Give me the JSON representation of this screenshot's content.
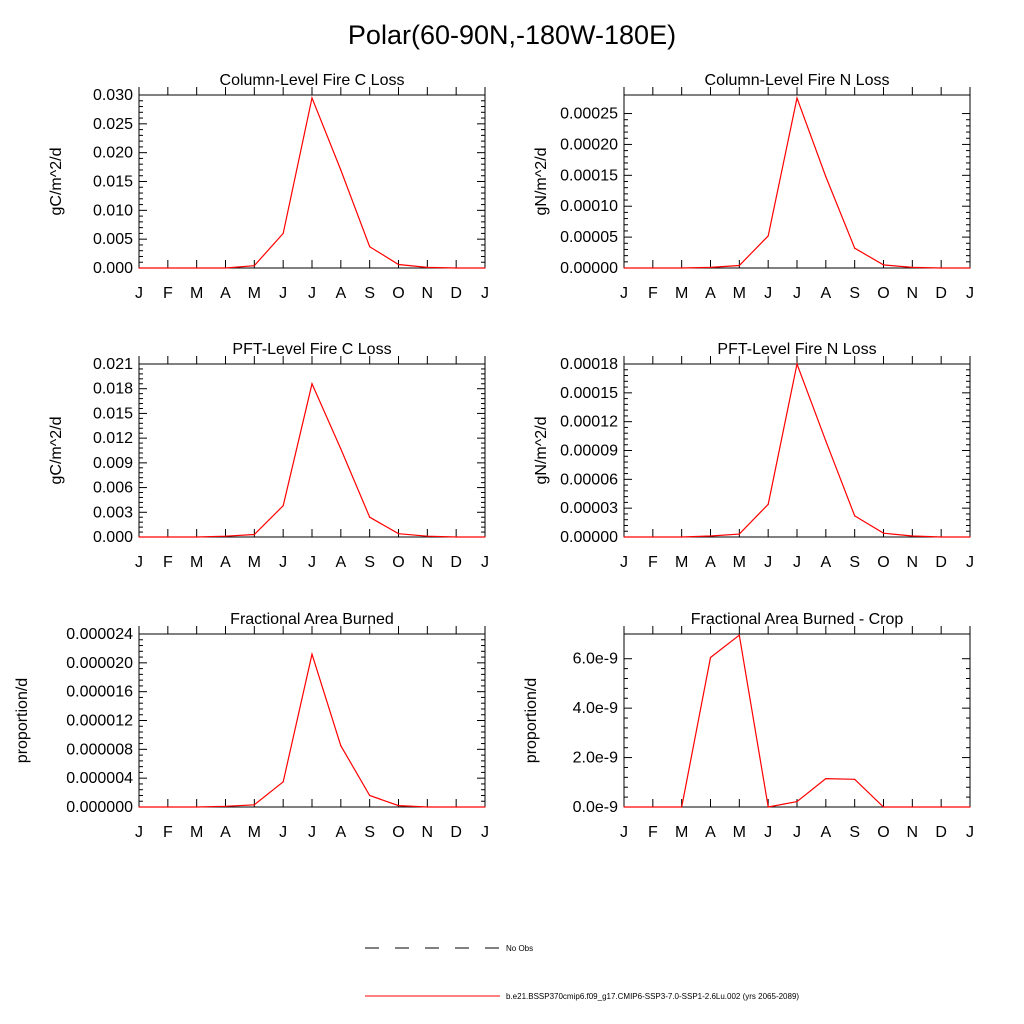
{
  "page_title": "Polar(60-90N,-180W-180E)",
  "legend": {
    "items": [
      {
        "label": "No Obs",
        "color": "#000000",
        "dashed": true
      },
      {
        "label": "b.e21.BSSP370cmip6.f09_g17.CMIP6-SSP3-7.0-SSP1-2.6Lu.002 (yrs 2065-2089)",
        "color": "#ff0000",
        "dashed": false
      }
    ]
  },
  "chart_data": [
    {
      "type": "line",
      "title": "Column-Level Fire C Loss",
      "xlabel": "",
      "ylabel": "gC/m^2/d",
      "categories": [
        "J",
        "F",
        "M",
        "A",
        "M",
        "J",
        "J",
        "A",
        "S",
        "O",
        "N",
        "D",
        "J"
      ],
      "ylim": [
        0,
        0.03
      ],
      "yticks": [
        "0.000",
        "0.005",
        "0.010",
        "0.015",
        "0.020",
        "0.025",
        "0.030"
      ],
      "series": [
        {
          "color": "#ff0000",
          "values": [
            0,
            0,
            0,
            0,
            0.0004,
            0.006,
            0.0295,
            0.017,
            0.0037,
            0.0006,
            0.0001,
            0.0,
            0.0
          ]
        }
      ]
    },
    {
      "type": "line",
      "title": "Column-Level Fire N Loss",
      "xlabel": "",
      "ylabel": "gN/m^2/d",
      "categories": [
        "J",
        "F",
        "M",
        "A",
        "M",
        "J",
        "J",
        "A",
        "S",
        "O",
        "N",
        "D",
        "J"
      ],
      "ylim": [
        0,
        0.00028
      ],
      "yticks": [
        "0.00000",
        "0.00005",
        "0.00010",
        "0.00015",
        "0.00020",
        "0.00025"
      ],
      "series": [
        {
          "color": "#ff0000",
          "values": [
            0,
            0,
            0,
            1e-06,
            4e-06,
            5.2e-05,
            0.000275,
            0.000148,
            3.2e-05,
            5e-06,
            1e-06,
            0.0,
            0.0
          ]
        }
      ]
    },
    {
      "type": "line",
      "title": "PFT-Level Fire C Loss",
      "xlabel": "",
      "ylabel": "gC/m^2/d",
      "categories": [
        "J",
        "F",
        "M",
        "A",
        "M",
        "J",
        "J",
        "A",
        "S",
        "O",
        "N",
        "D",
        "J"
      ],
      "ylim": [
        0,
        0.021
      ],
      "yticks": [
        "0.000",
        "0.003",
        "0.006",
        "0.009",
        "0.012",
        "0.015",
        "0.018",
        "0.021"
      ],
      "series": [
        {
          "color": "#ff0000",
          "values": [
            0,
            0,
            0,
            0.0001,
            0.0003,
            0.0038,
            0.0186,
            0.0107,
            0.0024,
            0.0004,
            0.0001,
            0.0,
            0.0
          ]
        }
      ]
    },
    {
      "type": "line",
      "title": "PFT-Level Fire N Loss",
      "xlabel": "",
      "ylabel": "gN/m^2/d",
      "categories": [
        "J",
        "F",
        "M",
        "A",
        "M",
        "J",
        "J",
        "A",
        "S",
        "O",
        "N",
        "D",
        "J"
      ],
      "ylim": [
        0,
        0.00018
      ],
      "yticks": [
        "0.00000",
        "0.00003",
        "0.00006",
        "0.00009",
        "0.00012",
        "0.00015",
        "0.00018"
      ],
      "series": [
        {
          "color": "#ff0000",
          "values": [
            0,
            0,
            0,
            1e-06,
            3e-06,
            3.4e-05,
            0.00018,
            0.0001,
            2.2e-05,
            4e-06,
            1e-06,
            0.0,
            0.0
          ]
        }
      ]
    },
    {
      "type": "line",
      "title": "Fractional Area Burned",
      "xlabel": "",
      "ylabel": "proportion/d",
      "categories": [
        "J",
        "F",
        "M",
        "A",
        "M",
        "J",
        "J",
        "A",
        "S",
        "O",
        "N",
        "D",
        "J"
      ],
      "ylim": [
        0,
        2.4e-05
      ],
      "yticks": [
        "0.000000",
        "0.000004",
        "0.000008",
        "0.000012",
        "0.000016",
        "0.000020",
        "0.000024"
      ],
      "series": [
        {
          "color": "#ff0000",
          "values": [
            0,
            0,
            0,
            1e-07,
            3e-07,
            3.5e-06,
            2.12e-05,
            8.5e-06,
            1.6e-06,
            2e-07,
            0.0,
            0.0,
            0.0
          ]
        }
      ]
    },
    {
      "type": "line",
      "title": "Fractional Area Burned - Crop",
      "xlabel": "",
      "ylabel": "proportion/d",
      "categories": [
        "J",
        "F",
        "M",
        "A",
        "M",
        "J",
        "J",
        "A",
        "S",
        "O",
        "N",
        "D",
        "J"
      ],
      "ylim": [
        0,
        7e-09
      ],
      "yticks": [
        "0.0e-9",
        "2.0e-9",
        "4.0e-9",
        "6.0e-9"
      ],
      "yticks_values": [
        0,
        2e-09,
        4e-09,
        6e-09
      ],
      "series": [
        {
          "color": "#ff0000",
          "values": [
            0,
            0,
            0,
            6.05e-09,
            6.95e-09,
            0,
            2.2e-10,
            1.15e-09,
            1.12e-09,
            0,
            0,
            0,
            0
          ]
        }
      ]
    }
  ]
}
